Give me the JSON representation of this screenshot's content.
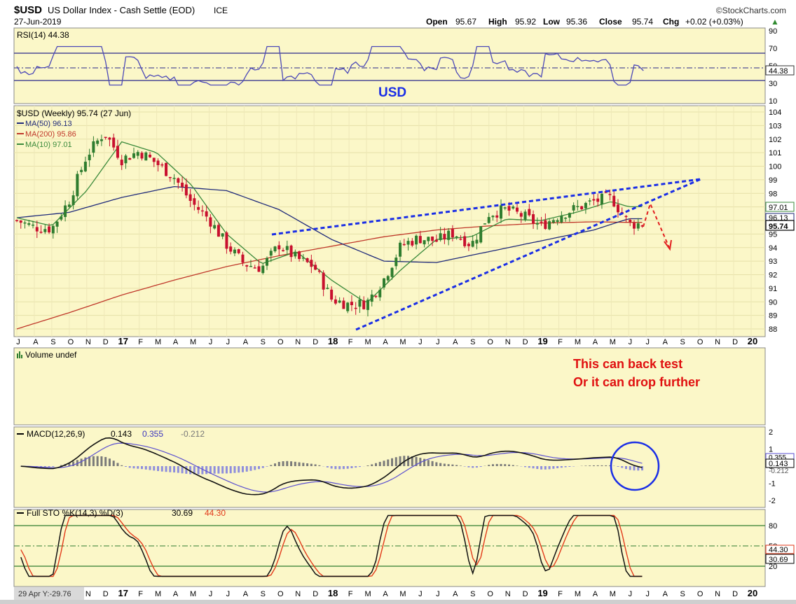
{
  "header": {
    "symbol": "$USD",
    "name": "US Dollar Index - Cash Settle (EOD)",
    "exchange": "ICE",
    "date": "27-Jun-2019",
    "brand": "©StockCharts.com",
    "open_label": "Open",
    "open": "95.67",
    "high_label": "High",
    "high": "95.92",
    "low_label": "Low",
    "low": "95.36",
    "close_label": "Close",
    "close": "95.74",
    "chg_label": "Chg",
    "chg": "+0.02 (+0.03%)",
    "chg_arrow": "▲"
  },
  "colors": {
    "panel_bg": "#fbf7c8",
    "up_candle": "#2f7d2f",
    "down_candle": "#c8102e",
    "ma50": "#1f2a7a",
    "ma200": "#c0392b",
    "ma10": "#3b8a3b",
    "trendline": "#1a2ee6",
    "projection": "#e22020",
    "annotation_text": "#e01010",
    "circle": "#1a2ee6",
    "rsi_line": "#4b48b8",
    "macd_line": "#111111",
    "signal_line": "#5b50d0",
    "hist_pos": "#7a7a7a",
    "hist_neg": "#8e8edc",
    "sto_k": "#111111",
    "sto_d": "#e23a1a"
  },
  "rsi_panel": {
    "label": "RSI(14) 44.38",
    "value_tag": "44.38",
    "value": 44.38,
    "ticks": [
      "90",
      "70",
      "50",
      "30",
      "10"
    ],
    "overlay_label": "USD"
  },
  "price_panel": {
    "legend_title": "$USD (Weekly) 95.74 (27 Jun)",
    "legend": [
      {
        "label": "MA(50) 96.13",
        "color": "#1f2a7a"
      },
      {
        "label": "MA(200) 95.86",
        "color": "#c0392b"
      },
      {
        "label": "MA(10) 97.01",
        "color": "#3b8a3b"
      }
    ],
    "ticks": [
      "104",
      "103",
      "102",
      "101",
      "100",
      "99",
      "98",
      "97",
      "96",
      "95",
      "94",
      "93",
      "92",
      "91",
      "90",
      "89",
      "88"
    ],
    "last_tags": [
      {
        "text": "97.01",
        "value": 97.01
      },
      {
        "text": "96.13",
        "value": 96.13
      },
      {
        "text": "95.74",
        "value": 95.74
      }
    ]
  },
  "time_axis": {
    "labels": [
      "J",
      "A",
      "S",
      "O",
      "N",
      "D",
      "17",
      "F",
      "M",
      "A",
      "M",
      "J",
      "J",
      "A",
      "S",
      "O",
      "N",
      "D",
      "18",
      "F",
      "M",
      "A",
      "M",
      "J",
      "J",
      "A",
      "S",
      "O",
      "N",
      "D",
      "19",
      "F",
      "M",
      "A",
      "M",
      "J",
      "J",
      "A",
      "S",
      "O",
      "N",
      "D",
      "20"
    ]
  },
  "volume_panel": {
    "label": "Volume undef",
    "annotation_line1": "This can back test",
    "annotation_line2": "Or it can drop further"
  },
  "macd_panel": {
    "label_prefix": "MACD(12,26,9)",
    "macd": "0.143",
    "signal": "0.355",
    "hist": "-0.212",
    "ticks": [
      "2",
      "1",
      "0",
      "-1",
      "-2"
    ],
    "tags": [
      "0.355",
      "0.143",
      "-0.212"
    ]
  },
  "sto_panel": {
    "label_prefix": "Full STO %K(14,3) %D(3)",
    "k": "30.69",
    "d": "44.30",
    "ticks": [
      "80",
      "50",
      "20"
    ],
    "tags": [
      "44.30",
      "30.69"
    ]
  },
  "footer": {
    "cursor_readout": "29 Apr Y:-29.76"
  },
  "chart_data": {
    "type": "candlestick",
    "title": "$USD US Dollar Index - Cash Settle (EOD)",
    "timeframe": "Weekly",
    "x_range": [
      "2016-07",
      "2020-01"
    ],
    "ylim": [
      88,
      104
    ],
    "series": [
      {
        "name": "$USD",
        "x": [
          "2016-07",
          "2016-08",
          "2016-09",
          "2016-10",
          "2016-11",
          "2016-12",
          "2017-01",
          "2017-02",
          "2017-03",
          "2017-04",
          "2017-05",
          "2017-06",
          "2017-07",
          "2017-08",
          "2017-09",
          "2017-10",
          "2017-11",
          "2017-12",
          "2018-01",
          "2018-02",
          "2018-03",
          "2018-04",
          "2018-05",
          "2018-06",
          "2018-07",
          "2018-08",
          "2018-09",
          "2018-10",
          "2018-11",
          "2018-12",
          "2019-01",
          "2019-02",
          "2019-03",
          "2019-04",
          "2019-05",
          "2019-06"
        ],
        "values": [
          96.0,
          95.5,
          95.4,
          97.5,
          100.8,
          102.5,
          100.5,
          101.1,
          100.2,
          99.2,
          97.3,
          96.1,
          94.2,
          92.8,
          92.5,
          94.2,
          93.2,
          92.6,
          90.2,
          89.8,
          89.9,
          91.7,
          94.2,
          94.7,
          94.5,
          95.1,
          94.2,
          96.5,
          96.8,
          96.3,
          95.6,
          96.4,
          96.9,
          97.4,
          97.7,
          95.74
        ]
      },
      {
        "name": "MA(50)",
        "x": [
          "2016-07",
          "2016-10",
          "2017-01",
          "2017-04",
          "2017-07",
          "2017-10",
          "2018-01",
          "2018-04",
          "2018-07",
          "2018-10",
          "2019-01",
          "2019-04",
          "2019-06"
        ],
        "values": [
          96.2,
          96.6,
          97.7,
          98.5,
          98.2,
          96.8,
          94.6,
          93.0,
          92.9,
          93.7,
          94.5,
          95.3,
          96.13
        ]
      },
      {
        "name": "MA(200)",
        "x": [
          "2016-07",
          "2016-10",
          "2017-01",
          "2017-04",
          "2017-07",
          "2017-10",
          "2018-01",
          "2018-04",
          "2018-07",
          "2018-10",
          "2019-01",
          "2019-04",
          "2019-06"
        ],
        "values": [
          88.0,
          89.2,
          90.5,
          91.6,
          92.6,
          93.4,
          94.1,
          94.8,
          95.3,
          95.6,
          95.8,
          95.9,
          95.86
        ]
      },
      {
        "name": "MA(10)",
        "x": [
          "2016-07",
          "2016-09",
          "2016-11",
          "2017-01",
          "2017-03",
          "2017-05",
          "2017-07",
          "2017-09",
          "2017-11",
          "2018-01",
          "2018-03",
          "2018-05",
          "2018-07",
          "2018-09",
          "2018-11",
          "2019-01",
          "2019-03",
          "2019-05",
          "2019-06"
        ],
        "values": [
          96.2,
          95.6,
          98.2,
          101.8,
          101.0,
          98.6,
          95.0,
          92.8,
          93.7,
          91.6,
          89.9,
          92.4,
          94.6,
          94.8,
          96.1,
          96.0,
          96.6,
          97.4,
          97.01
        ]
      }
    ],
    "trendlines": [
      {
        "name": "upper",
        "from": [
          "2017-09",
          95.2
        ],
        "to": [
          "2019-10",
          99.1
        ]
      },
      {
        "name": "lower",
        "from": [
          "2018-02",
          88.2
        ],
        "to": [
          "2019-10",
          99.1
        ]
      }
    ],
    "projection": {
      "from": [
        "2019-06",
        95.7
      ],
      "mid": [
        "2019-07",
        97.3
      ],
      "to": [
        "2019-08",
        94.1
      ]
    },
    "indicators": {
      "rsi": {
        "period": 14,
        "last": 44.38,
        "ylim": [
          10,
          90
        ]
      },
      "macd": {
        "params": "12,26,9",
        "macd": 0.143,
        "signal": 0.355,
        "hist": -0.212,
        "ylim": [
          -2,
          2
        ]
      },
      "full_sto": {
        "params": "%K(14,3) %D(3)",
        "k": 30.69,
        "d": 44.3,
        "ylim": [
          0,
          100
        ]
      }
    }
  }
}
